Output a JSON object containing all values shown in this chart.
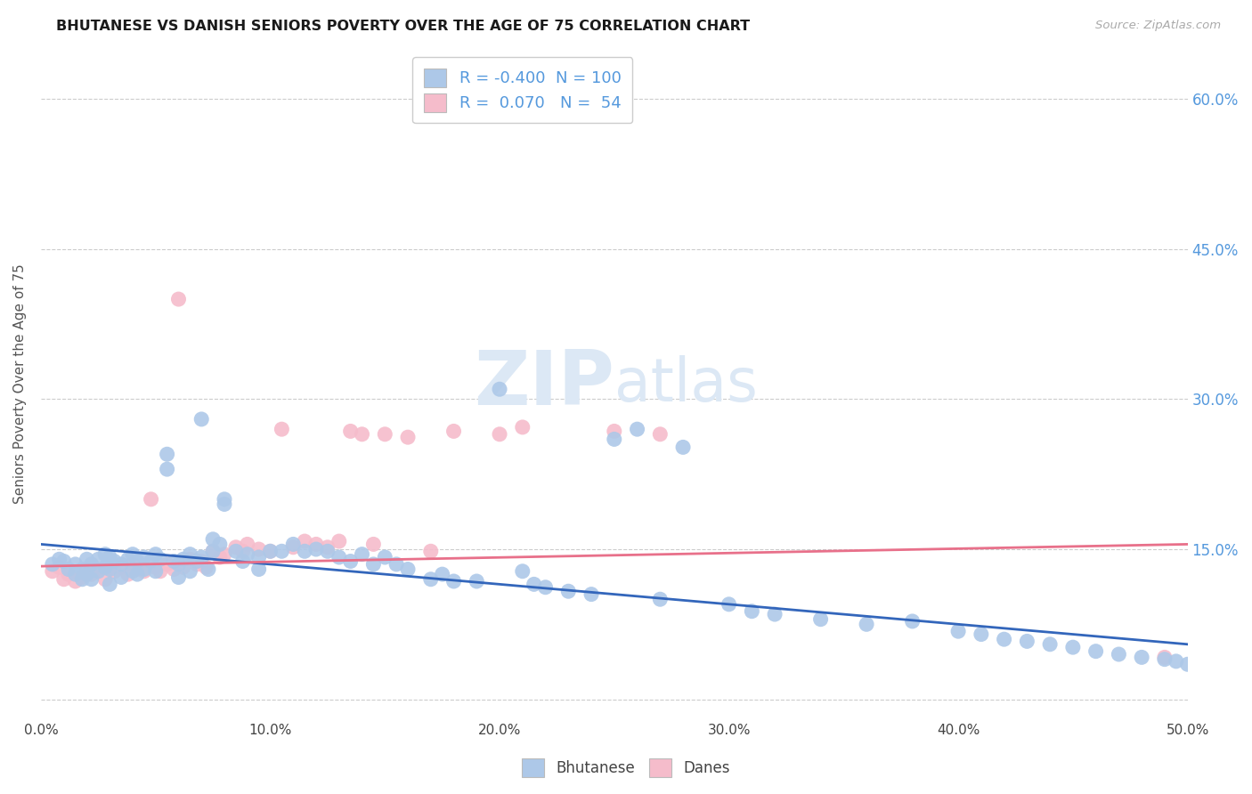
{
  "title": "BHUTANESE VS DANISH SENIORS POVERTY OVER THE AGE OF 75 CORRELATION CHART",
  "source": "Source: ZipAtlas.com",
  "ylabel": "Seniors Poverty Over the Age of 75",
  "xlim": [
    0.0,
    0.5
  ],
  "ylim": [
    -0.02,
    0.65
  ],
  "xticks": [
    0.0,
    0.1,
    0.2,
    0.3,
    0.4,
    0.5
  ],
  "xticklabels": [
    "0.0%",
    "10.0%",
    "20.0%",
    "30.0%",
    "40.0%",
    "50.0%"
  ],
  "right_ytick_vals": [
    0.15,
    0.3,
    0.45,
    0.6
  ],
  "right_ytick_labels": [
    "15.0%",
    "30.0%",
    "45.0%",
    "60.0%"
  ],
  "grid_ytick_vals": [
    0.0,
    0.15,
    0.3,
    0.45,
    0.6
  ],
  "legend_r_bhutanese": "-0.400",
  "legend_n_bhutanese": "100",
  "legend_r_danes": "0.070",
  "legend_n_danes": "54",
  "bhutanese_color": "#adc8e8",
  "danes_color": "#f5bccb",
  "bhutanese_line_color": "#3366bb",
  "danes_line_color": "#e8708a",
  "background_color": "#ffffff",
  "grid_color": "#cccccc",
  "title_color": "#1a1a1a",
  "right_axis_color": "#5599dd",
  "watermark_color": "#dce8f5",
  "bhutanese_trend_x0": 0.0,
  "bhutanese_trend_y0": 0.155,
  "bhutanese_trend_x1": 0.5,
  "bhutanese_trend_y1": 0.055,
  "danes_trend_x0": 0.0,
  "danes_trend_y0": 0.133,
  "danes_trend_x1": 0.5,
  "danes_trend_y1": 0.155,
  "bhutanese_x": [
    0.005,
    0.008,
    0.01,
    0.012,
    0.015,
    0.015,
    0.018,
    0.018,
    0.02,
    0.02,
    0.022,
    0.022,
    0.025,
    0.025,
    0.028,
    0.028,
    0.03,
    0.03,
    0.03,
    0.032,
    0.035,
    0.035,
    0.038,
    0.04,
    0.04,
    0.042,
    0.042,
    0.045,
    0.045,
    0.048,
    0.05,
    0.05,
    0.052,
    0.055,
    0.055,
    0.058,
    0.06,
    0.06,
    0.062,
    0.065,
    0.065,
    0.068,
    0.07,
    0.07,
    0.073,
    0.075,
    0.075,
    0.078,
    0.08,
    0.08,
    0.085,
    0.088,
    0.09,
    0.095,
    0.095,
    0.1,
    0.105,
    0.11,
    0.115,
    0.12,
    0.125,
    0.13,
    0.135,
    0.14,
    0.145,
    0.15,
    0.155,
    0.16,
    0.17,
    0.175,
    0.18,
    0.19,
    0.2,
    0.21,
    0.215,
    0.22,
    0.23,
    0.24,
    0.25,
    0.26,
    0.27,
    0.28,
    0.3,
    0.31,
    0.32,
    0.34,
    0.36,
    0.38,
    0.4,
    0.41,
    0.42,
    0.43,
    0.44,
    0.45,
    0.46,
    0.47,
    0.48,
    0.49,
    0.495,
    0.5
  ],
  "bhutanese_y": [
    0.135,
    0.14,
    0.138,
    0.13,
    0.135,
    0.125,
    0.13,
    0.12,
    0.14,
    0.125,
    0.135,
    0.12,
    0.14,
    0.128,
    0.145,
    0.132,
    0.142,
    0.13,
    0.115,
    0.138,
    0.135,
    0.122,
    0.14,
    0.145,
    0.128,
    0.138,
    0.125,
    0.142,
    0.13,
    0.138,
    0.145,
    0.128,
    0.14,
    0.245,
    0.23,
    0.138,
    0.135,
    0.122,
    0.14,
    0.145,
    0.128,
    0.138,
    0.28,
    0.142,
    0.13,
    0.16,
    0.148,
    0.155,
    0.2,
    0.195,
    0.148,
    0.138,
    0.145,
    0.142,
    0.13,
    0.148,
    0.148,
    0.155,
    0.148,
    0.15,
    0.148,
    0.142,
    0.138,
    0.145,
    0.135,
    0.142,
    0.135,
    0.13,
    0.12,
    0.125,
    0.118,
    0.118,
    0.31,
    0.128,
    0.115,
    0.112,
    0.108,
    0.105,
    0.26,
    0.27,
    0.1,
    0.252,
    0.095,
    0.088,
    0.085,
    0.08,
    0.075,
    0.078,
    0.068,
    0.065,
    0.06,
    0.058,
    0.055,
    0.052,
    0.048,
    0.045,
    0.042,
    0.04,
    0.038,
    0.035
  ],
  "danes_x": [
    0.005,
    0.008,
    0.01,
    0.012,
    0.015,
    0.018,
    0.02,
    0.022,
    0.025,
    0.028,
    0.03,
    0.032,
    0.035,
    0.038,
    0.04,
    0.042,
    0.045,
    0.048,
    0.05,
    0.052,
    0.055,
    0.058,
    0.06,
    0.062,
    0.065,
    0.068,
    0.07,
    0.072,
    0.075,
    0.078,
    0.08,
    0.085,
    0.088,
    0.09,
    0.095,
    0.1,
    0.105,
    0.11,
    0.115,
    0.12,
    0.125,
    0.13,
    0.135,
    0.14,
    0.145,
    0.15,
    0.16,
    0.17,
    0.18,
    0.2,
    0.21,
    0.25,
    0.27,
    0.49
  ],
  "danes_y": [
    0.128,
    0.132,
    0.12,
    0.125,
    0.118,
    0.122,
    0.13,
    0.125,
    0.128,
    0.12,
    0.13,
    0.128,
    0.132,
    0.125,
    0.135,
    0.13,
    0.128,
    0.2,
    0.132,
    0.128,
    0.135,
    0.13,
    0.4,
    0.132,
    0.14,
    0.135,
    0.138,
    0.132,
    0.148,
    0.142,
    0.145,
    0.152,
    0.148,
    0.155,
    0.15,
    0.148,
    0.27,
    0.152,
    0.158,
    0.155,
    0.152,
    0.158,
    0.268,
    0.265,
    0.155,
    0.265,
    0.262,
    0.148,
    0.268,
    0.265,
    0.272,
    0.268,
    0.265,
    0.042
  ]
}
